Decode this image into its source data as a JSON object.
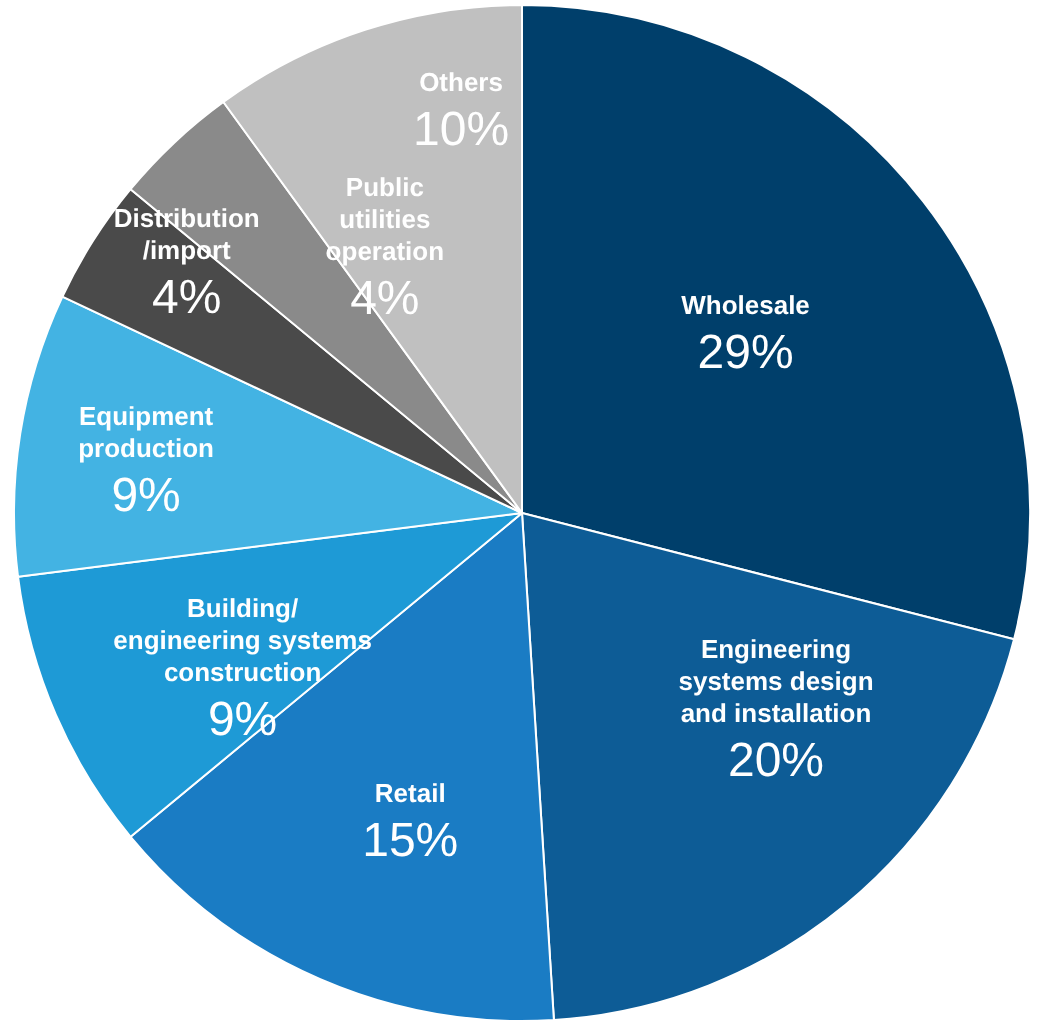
{
  "chart_data": {
    "type": "pie",
    "categories": [
      "Wholesale",
      "Engineering\nsystems design\nand installation",
      "Retail",
      "Building/\nengineering systems\nconstruction",
      "Equipment\nproduction",
      "Distribution\n/import",
      "Public\nutilities\noperation",
      "Others"
    ],
    "values": [
      29,
      20,
      15,
      9,
      9,
      4,
      4,
      10
    ],
    "colors": [
      "#003f6b",
      "#0d5c96",
      "#1a7cc4",
      "#1e9ad6",
      "#43b3e3",
      "#4a4a4a",
      "#8a8a8a",
      "#c0c0c0"
    ],
    "value_labels": [
      "29%",
      "20%",
      "15%",
      "9%",
      "9%",
      "4%",
      "4%",
      "10%"
    ],
    "legend": false
  }
}
